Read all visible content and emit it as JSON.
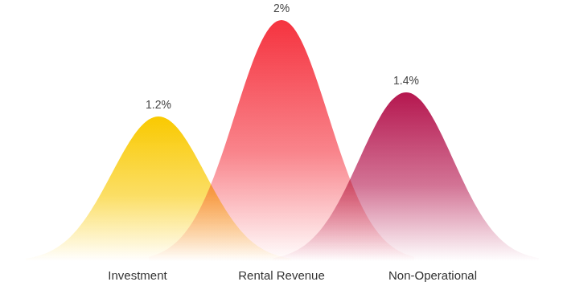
{
  "chart_data": {
    "type": "bell",
    "categories": [
      "Investment",
      "Rental Revenue",
      "Non-Operational"
    ],
    "values": [
      1.2,
      2,
      1.4
    ],
    "value_labels": [
      "1.2%",
      "2%",
      "1.4%"
    ],
    "colors": [
      "#f9c900",
      "#f5333f",
      "#b5174f"
    ],
    "data_labels": true,
    "tick_labels": "x"
  }
}
